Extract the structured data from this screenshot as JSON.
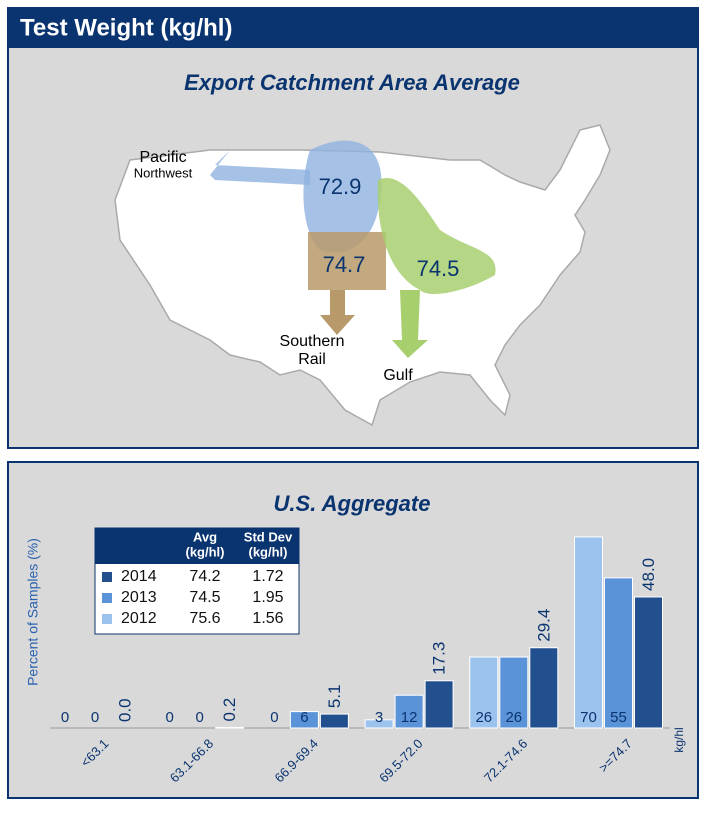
{
  "header": {
    "title": "Test Weight (kg/hl)"
  },
  "map": {
    "title": "Export Catchment Area Average",
    "regions": [
      {
        "label_lines": [
          "Pacific",
          "Northwest"
        ],
        "value": 72.9,
        "color": "#8fb3e0"
      },
      {
        "label_lines": [
          "Southern",
          "Rail"
        ],
        "value": 74.7,
        "color": "#b89a6a"
      },
      {
        "label_lines": [
          "Gulf"
        ],
        "value": 74.5,
        "color": "#a8cf6e"
      }
    ]
  },
  "chart_data": {
    "type": "bar",
    "title": "U.S. Aggregate",
    "y_label": "Percent of Samples (%)",
    "x_unit": "kg/hl",
    "categories": [
      "<63.1",
      "63.1-66.8",
      "66.9-69.4",
      "69.5-72.0",
      "72.1-74.6",
      ">=74.7"
    ],
    "series": [
      {
        "name": "2014",
        "color": "#22508f",
        "values": [
          0,
          0.2,
          5.1,
          17.3,
          29.4,
          48
        ],
        "value_labels": [
          "0.0",
          "0.2",
          "5.1",
          "17.3",
          "29.4",
          "48.0"
        ]
      },
      {
        "name": "2013",
        "color": "#5b93d8",
        "values": [
          0,
          0,
          6,
          12,
          26,
          55
        ]
      },
      {
        "name": "2012",
        "color": "#9cc3ee",
        "values": [
          0,
          0,
          0,
          3,
          26,
          70
        ]
      }
    ],
    "legend_table": {
      "header_lines": [
        [
          "Avg",
          "(kg/hl)"
        ],
        [
          "Std Dev",
          "(kg/hl)"
        ]
      ],
      "rows": [
        [
          "74.2",
          "1.72"
        ],
        [
          "74.5",
          "1.95"
        ],
        [
          "75.6",
          "1.56"
        ]
      ]
    }
  }
}
